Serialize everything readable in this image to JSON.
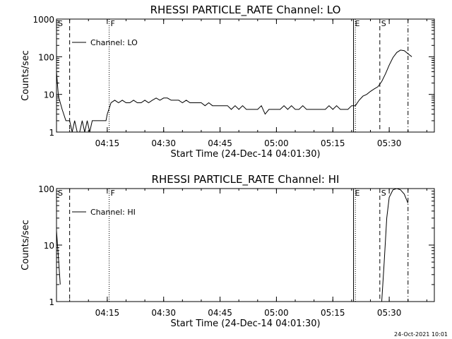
{
  "footer": {
    "timestamp": "24-Oct-2021 10:01"
  },
  "chart_data": [
    {
      "type": "line",
      "title": "RHESSI PARTICLE_RATE Channel: LO",
      "xlabel": "Start Time (24-Dec-14 04:01:30)",
      "ylabel": "Counts/sec",
      "yscale": "log",
      "ylim": [
        1,
        1000
      ],
      "xlim": [
        "04:01:30",
        "05:42:00"
      ],
      "x_ticks": [
        "04:15",
        "04:30",
        "04:45",
        "05:00",
        "05:15",
        "05:30"
      ],
      "y_ticks": [
        "1",
        "10",
        "100",
        "1000"
      ],
      "grid": false,
      "legend": {
        "position": "top-left",
        "entries": [
          "Channel: LO"
        ]
      },
      "markers": [
        {
          "label": "S",
          "time": "04:01:30",
          "style": "solid"
        },
        {
          "label": "",
          "time": "04:05:00",
          "style": "dashed"
        },
        {
          "label": "F",
          "time": "04:15:30",
          "style": "dotted"
        },
        {
          "label": "E",
          "time": "05:20:30",
          "style": "solid"
        },
        {
          "label": "",
          "time": "05:21:00",
          "style": "dotted"
        },
        {
          "label": "S",
          "time": "05:27:30",
          "style": "dashed"
        },
        {
          "label": "",
          "time": "05:35:00",
          "style": "dashdot"
        }
      ],
      "series": [
        {
          "name": "Channel: LO",
          "x": [
            "04:01:30",
            "04:02:00",
            "04:03:00",
            "04:04:00",
            "04:05:00",
            "04:05:40",
            "04:06:20",
            "04:07:00",
            "04:07:40",
            "04:08:20",
            "04:09:00",
            "04:09:40",
            "04:10:20",
            "04:11:00",
            "04:11:10",
            "04:13:00",
            "04:14:40",
            "04:15:00",
            "04:16:00",
            "04:17:00",
            "04:18:00",
            "04:19:00",
            "04:20:00",
            "04:21:00",
            "04:22:00",
            "04:23:00",
            "04:24:00",
            "04:25:00",
            "04:26:00",
            "04:27:00",
            "04:28:00",
            "04:29:00",
            "04:30:00",
            "04:31:00",
            "04:32:00",
            "04:33:00",
            "04:34:00",
            "04:35:00",
            "04:36:00",
            "04:37:00",
            "04:38:00",
            "04:39:00",
            "04:40:00",
            "04:41:00",
            "04:42:00",
            "04:43:00",
            "04:44:00",
            "04:45:00",
            "04:46:00",
            "04:47:00",
            "04:48:00",
            "04:49:00",
            "04:50:00",
            "04:51:00",
            "04:52:00",
            "04:53:00",
            "04:54:00",
            "04:55:00",
            "04:56:00",
            "04:57:00",
            "04:58:00",
            "04:59:00",
            "05:00:00",
            "05:01:00",
            "05:02:00",
            "05:03:00",
            "05:04:00",
            "05:05:00",
            "05:06:00",
            "05:07:00",
            "05:08:00",
            "05:09:00",
            "05:10:00",
            "05:11:00",
            "05:12:00",
            "05:13:00",
            "05:14:00",
            "05:15:00",
            "05:16:00",
            "05:17:00",
            "05:18:00",
            "05:19:00",
            "05:20:00",
            "05:21:00",
            "05:22:00",
            "05:23:00",
            "05:24:00",
            "05:25:00",
            "05:26:00",
            "05:27:00",
            "05:28:00",
            "05:29:00",
            "05:30:00",
            "05:31:00",
            "05:32:00",
            "05:33:00",
            "05:34:00",
            "05:35:00",
            "05:36:00"
          ],
          "y": [
            40,
            9,
            4,
            2,
            2,
            1,
            2,
            1,
            1,
            2,
            1,
            2,
            1,
            2,
            2,
            2,
            2,
            3,
            6,
            7,
            6,
            7,
            6,
            6,
            7,
            6,
            6,
            7,
            6,
            7,
            8,
            7,
            8,
            8,
            7,
            7,
            7,
            6,
            7,
            6,
            6,
            6,
            6,
            5,
            6,
            5,
            5,
            5,
            5,
            5,
            4,
            5,
            4,
            5,
            4,
            4,
            4,
            4,
            5,
            3,
            4,
            4,
            4,
            4,
            5,
            4,
            5,
            4,
            4,
            5,
            4,
            4,
            4,
            4,
            4,
            4,
            5,
            4,
            5,
            4,
            4,
            4,
            5,
            5,
            7,
            9,
            10,
            12,
            14,
            16,
            22,
            35,
            60,
            95,
            130,
            150,
            145,
            120,
            100
          ]
        }
      ]
    },
    {
      "type": "line",
      "title": "RHESSI PARTICLE_RATE Channel: HI",
      "xlabel": "Start Time (24-Dec-14 04:01:30)",
      "ylabel": "Counts/sec",
      "yscale": "log",
      "ylim": [
        1,
        100
      ],
      "xlim": [
        "04:01:30",
        "05:42:00"
      ],
      "x_ticks": [
        "04:15",
        "04:30",
        "04:45",
        "05:00",
        "05:15",
        "05:30"
      ],
      "y_ticks": [
        "1",
        "10",
        "100"
      ],
      "grid": false,
      "legend": {
        "position": "top-left",
        "entries": [
          "Channel: HI"
        ]
      },
      "markers": [
        {
          "label": "S",
          "time": "04:01:30",
          "style": "solid"
        },
        {
          "label": "",
          "time": "04:05:00",
          "style": "dashed"
        },
        {
          "label": "F",
          "time": "04:15:30",
          "style": "dotted"
        },
        {
          "label": "E",
          "time": "05:20:30",
          "style": "solid"
        },
        {
          "label": "",
          "time": "05:21:00",
          "style": "dotted"
        },
        {
          "label": "S",
          "time": "05:27:30",
          "style": "dashed"
        },
        {
          "label": "",
          "time": "05:35:00",
          "style": "dashdot"
        }
      ],
      "series": [
        {
          "name": "Channel: HI",
          "segments": [
            {
              "x": [
                "04:01:30",
                "04:02:00",
                "04:02:30"
              ],
              "y": [
                18,
                6,
                2
              ]
            },
            {
              "x": [
                "05:28:00",
                "05:28:40",
                "05:29:20",
                "05:30:00",
                "05:31:00",
                "05:32:00",
                "05:33:00",
                "05:34:00",
                "05:35:00"
              ],
              "y": [
                1,
                5,
                30,
                70,
                95,
                100,
                95,
                80,
                55
              ]
            }
          ]
        }
      ]
    }
  ]
}
